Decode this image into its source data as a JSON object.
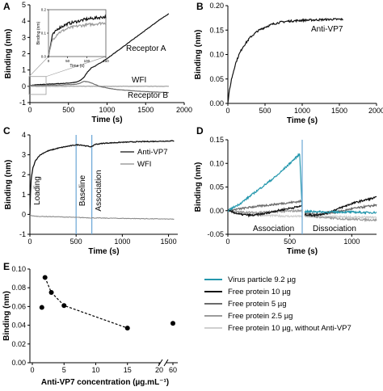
{
  "colors": {
    "teal": "#2497ad",
    "black": "#111111",
    "dark_gray": "#6b6b6b",
    "gray": "#9b9b9b",
    "light_gray": "#cfcfcf",
    "wfi_gray": "#8c8c8c",
    "vline_blue": "#6aa6d6"
  },
  "chart_data": [
    {
      "panel": "A",
      "type": "line",
      "xlabel": "Time (s)",
      "ylabel": "Binding (nm)",
      "xlim": [
        0,
        2000
      ],
      "ylim": [
        -1,
        5
      ],
      "xticks": [
        0,
        500,
        1000,
        1500,
        2000
      ],
      "yticks": [
        -1,
        0,
        1,
        2,
        3,
        4,
        5
      ],
      "grid": false,
      "series": [
        {
          "name": "Receptor A",
          "x": [
            0,
            100,
            200,
            300,
            400,
            500,
            600,
            650,
            700,
            750,
            800,
            850,
            900,
            1000,
            1100,
            1200,
            1300,
            1400,
            1500,
            1600,
            1700,
            1800
          ],
          "y": [
            0.05,
            0.1,
            0.12,
            0.15,
            0.17,
            0.2,
            0.25,
            0.35,
            0.55,
            0.9,
            1.15,
            1.25,
            1.4,
            1.7,
            2.05,
            2.4,
            2.75,
            3.1,
            3.45,
            3.8,
            4.15,
            4.45
          ]
        },
        {
          "name": "WFI",
          "x": [
            0,
            200,
            400,
            600,
            700,
            800,
            900,
            1000,
            1200,
            1400,
            1600,
            1800
          ],
          "y": [
            0.0,
            0.0,
            0.0,
            0.0,
            0.0,
            0.0,
            0.0,
            0.0,
            0.0,
            0.0,
            0.0,
            0.0
          ]
        },
        {
          "name": "Receptor B",
          "x": [
            0,
            200,
            400,
            600,
            650,
            700,
            750,
            800,
            850,
            900,
            1000,
            1100,
            1200,
            1400,
            1600,
            1800
          ],
          "y": [
            0.05,
            0.07,
            0.08,
            0.12,
            0.2,
            0.3,
            0.28,
            0.2,
            0.1,
            0.0,
            -0.1,
            -0.18,
            -0.23,
            -0.3,
            -0.35,
            -0.38
          ]
        }
      ],
      "annotations": [
        "Receptor A",
        "WFI",
        "Receptor B"
      ],
      "inset": {
        "xlabel": "Time (s)",
        "ylabel": "Binding (nm)",
        "xlim": [
          0,
          150
        ],
        "ylim": [
          0,
          0.2
        ],
        "xticks": [
          0,
          50,
          100,
          150
        ],
        "yticks": [
          0.0,
          0.1,
          0.2
        ],
        "series": [
          {
            "name": "Receptor A",
            "x": [
              0,
              10,
              25,
              50,
              75,
              100,
              125,
              150
            ],
            "y": [
              0.0,
              0.09,
              0.12,
              0.14,
              0.15,
              0.16,
              0.165,
              0.17
            ]
          },
          {
            "name": "Receptor B",
            "x": [
              0,
              10,
              25,
              50,
              75,
              100,
              125,
              150
            ],
            "y": [
              0.0,
              0.07,
              0.1,
              0.12,
              0.13,
              0.135,
              0.14,
              0.145
            ]
          }
        ]
      }
    },
    {
      "panel": "B",
      "type": "line",
      "xlabel": "Time (s)",
      "ylabel": "Binding (nm)",
      "xlim": [
        0,
        2000
      ],
      "ylim": [
        0,
        0.2
      ],
      "xticks": [
        0,
        500,
        1000,
        1500,
        2000
      ],
      "yticks": [
        0.0,
        0.05,
        0.1,
        0.15,
        0.2
      ],
      "grid": false,
      "series": [
        {
          "name": "Anti-VP7",
          "x": [
            0,
            20,
            50,
            100,
            150,
            200,
            300,
            400,
            500,
            600,
            700,
            800,
            1000,
            1200,
            1400,
            1550
          ],
          "y": [
            0.0,
            0.025,
            0.05,
            0.08,
            0.1,
            0.115,
            0.135,
            0.148,
            0.156,
            0.162,
            0.166,
            0.168,
            0.17,
            0.171,
            0.172,
            0.172
          ]
        }
      ],
      "annotations": [
        "Anti-VP7"
      ]
    },
    {
      "panel": "C",
      "type": "line",
      "xlabel": "Time (s)",
      "ylabel": "Binding (nm)",
      "xlim": [
        0,
        1600
      ],
      "ylim": [
        -1,
        4
      ],
      "xticks": [
        0,
        500,
        1000,
        1500
      ],
      "yticks": [
        -1,
        0,
        1,
        2,
        3,
        4
      ],
      "grid": false,
      "vlines": [
        500,
        670
      ],
      "phase_labels": [
        "Loading",
        "Baseline",
        "Association"
      ],
      "legend": {
        "position": "top-right",
        "entries": [
          "Anti-VP7",
          "WFI"
        ]
      },
      "series": [
        {
          "name": "Anti-VP7",
          "x": [
            0,
            10,
            30,
            60,
            100,
            150,
            200,
            300,
            400,
            500,
            550,
            600,
            670,
            700,
            800,
            1000,
            1200,
            1400,
            1560
          ],
          "y": [
            0.0,
            1.6,
            2.3,
            2.7,
            2.95,
            3.1,
            3.2,
            3.33,
            3.42,
            3.5,
            3.5,
            3.45,
            3.4,
            3.52,
            3.58,
            3.63,
            3.66,
            3.68,
            3.7
          ]
        },
        {
          "name": "WFI",
          "x": [
            0,
            10,
            30,
            100,
            300,
            500,
            700,
            1000,
            1300,
            1560
          ],
          "y": [
            0.0,
            -0.05,
            -0.08,
            -0.1,
            -0.12,
            -0.15,
            -0.18,
            -0.2,
            -0.22,
            -0.24
          ]
        }
      ]
    },
    {
      "panel": "D",
      "type": "line",
      "xlabel": "Time (s)",
      "ylabel": "Binding (nm)",
      "xlim": [
        0,
        1200
      ],
      "ylim": [
        -0.05,
        0.15
      ],
      "xticks": [
        0,
        500,
        1000
      ],
      "yticks": [
        -0.05,
        0.0,
        0.05,
        0.1,
        0.15
      ],
      "grid": false,
      "vlines": [
        600
      ],
      "phase_labels": [
        "Association",
        "Dissociation"
      ],
      "series": [
        {
          "name": "Virus particle 9.2 µg",
          "x": [
            0,
            100,
            200,
            300,
            400,
            500,
            580,
            600,
            620,
            700,
            800,
            900,
            1000,
            1100,
            1200
          ],
          "y": [
            0.0,
            0.015,
            0.035,
            0.055,
            0.075,
            0.1,
            0.12,
            0.0,
            -0.002,
            -0.002,
            -0.003,
            -0.003,
            -0.003,
            -0.004,
            -0.004
          ]
        },
        {
          "name": "Free protein 10 µg",
          "x": [
            0,
            100,
            200,
            300,
            400,
            500,
            600,
            620,
            700,
            800,
            900,
            1000,
            1100,
            1200
          ],
          "y": [
            0.0,
            -0.008,
            -0.01,
            -0.006,
            0.0,
            0.005,
            0.01,
            -0.008,
            -0.01,
            -0.005,
            0.005,
            0.015,
            0.022,
            0.028
          ]
        },
        {
          "name": "Free protein 5 µg",
          "x": [
            0,
            100,
            200,
            300,
            400,
            500,
            600,
            620,
            700,
            800,
            900,
            1000,
            1100,
            1200
          ],
          "y": [
            0.0,
            0.004,
            0.008,
            0.011,
            0.014,
            0.017,
            0.02,
            -0.005,
            -0.008,
            -0.006,
            -0.002,
            0.004,
            0.008,
            0.012
          ]
        },
        {
          "name": "Free protein 2.5 µg",
          "x": [
            0,
            100,
            200,
            300,
            400,
            500,
            600,
            620,
            700,
            800,
            900,
            1000,
            1100,
            1200
          ],
          "y": [
            0.0,
            -0.003,
            -0.004,
            -0.003,
            -0.002,
            -0.001,
            0.0,
            -0.01,
            -0.013,
            -0.015,
            -0.017,
            -0.018,
            -0.019,
            -0.02
          ]
        },
        {
          "name": "Free protein 10 µg, without Anti-VP7",
          "x": [
            0,
            100,
            200,
            300,
            400,
            500,
            600,
            620,
            700,
            800,
            900,
            1000,
            1100,
            1200
          ],
          "y": [
            0.0,
            -0.005,
            -0.008,
            -0.01,
            -0.011,
            -0.012,
            -0.012,
            -0.012,
            -0.013,
            -0.013,
            -0.013,
            -0.014,
            -0.014,
            -0.014
          ]
        }
      ],
      "legend": {
        "position": "right",
        "entries": [
          "Virus particle 9.2 µg",
          "Free protein 10 µg",
          "Free protein 5 µg",
          "Free protein 2.5 µg",
          "Free protein 10 µg, without Anti-VP7"
        ]
      }
    },
    {
      "panel": "E",
      "type": "scatter",
      "xlabel": "Anti-VP7 concentration (µg.mL⁻¹)",
      "ylabel": "Binding (nm)",
      "ylim": [
        0,
        0.1
      ],
      "yticks": [
        0.0,
        0.02,
        0.04,
        0.06,
        0.08,
        0.1
      ],
      "xticks": [
        0,
        5,
        10,
        15,
        20,
        60
      ],
      "axis_break": true,
      "grid": false,
      "points": {
        "x": [
          1.5,
          2,
          3,
          5,
          15,
          60
        ],
        "y": [
          0.059,
          0.091,
          0.075,
          0.061,
          0.037,
          0.042
        ]
      },
      "trend": {
        "x": [
          2,
          3,
          5,
          15
        ],
        "y": [
          0.091,
          0.075,
          0.061,
          0.037
        ]
      }
    }
  ]
}
